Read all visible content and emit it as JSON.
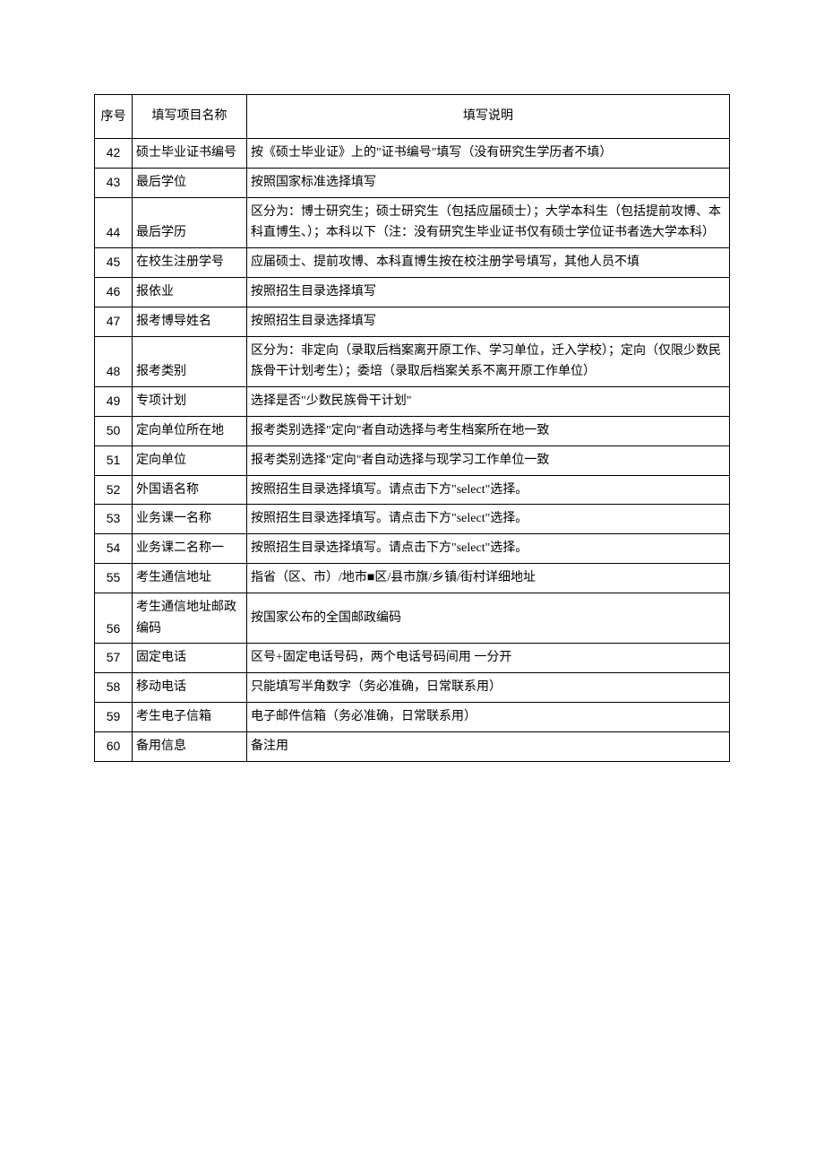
{
  "table": {
    "header": {
      "num": "序号",
      "name": "填写项目名称",
      "desc": "填写说明"
    },
    "rows": [
      {
        "num": "42",
        "name": "硕士毕业证书编号",
        "desc": "按《硕士毕业证》上的\"证书编号\"填写（没有研究生学历者不填）"
      },
      {
        "num": "43",
        "name": "最后学位",
        "desc": "按照国家标准选择填写"
      },
      {
        "num": "44",
        "name": "最后学历",
        "desc": "区分为：博士研究生；硕士研究生（包括应届硕士）；大学本科生（包括提前攻博、本科直博生、）；本科以下（注：没有研究生毕业证书仅有硕士学位证书者选大学本科）",
        "bottom": true
      },
      {
        "num": "45",
        "name": "在校生注册学号",
        "desc": "应届硕士、提前攻博、本科直博生按在校注册学号填写，其他人员不填"
      },
      {
        "num": "46",
        "name": "报依业",
        "desc": "按照招生目录选择填写"
      },
      {
        "num": "47",
        "name": "报考博导姓名",
        "desc": "按照招生目录选择填写"
      },
      {
        "num": "48",
        "name": "报考类别",
        "desc": "区分为：非定向（录取后档案离开原工作、学习单位，迁入学校）；定向（仅限少数民族骨干计划考生）；委培（录取后档案关系不离开原工作单位）",
        "bottom": true
      },
      {
        "num": "49",
        "name": "专项计划",
        "desc": "选择是否\"少数民族骨干计划\""
      },
      {
        "num": "50",
        "name": "定向单位所在地",
        "desc": "报考类别选择\"定向\"者自动选择与考生档案所在地一致"
      },
      {
        "num": "51",
        "name": "定向单位",
        "desc": "报考类别选择\"定向\"者自动选择与现学习工作单位一致"
      },
      {
        "num": "52",
        "name": "外国语名称",
        "desc": "按照招生目录选择填写。请点击下方\"select\"选择。"
      },
      {
        "num": "53",
        "name": "业务课一名称",
        "desc": "按照招生目录选择填写。请点击下方\"select\"选择。"
      },
      {
        "num": "54",
        "name": "业务课二名称一",
        "desc": "按照招生目录选择填写。请点击下方\"select\"选择。"
      },
      {
        "num": "55",
        "name": "考生通信地址",
        "desc": "指省（区、市）/地市■区/县市旗/乡镇/街村详细地址"
      },
      {
        "num": "56",
        "name": "考生通信地址邮政编码",
        "desc": "按国家公布的全国邮政编码",
        "bottom": true
      },
      {
        "num": "57",
        "name": "固定电话",
        "desc": "区号+固定电话号码，两个电话号码间用 一分开"
      },
      {
        "num": "58",
        "name": "移动电话",
        "desc": "只能填写半角数字（务必准确，日常联系用）"
      },
      {
        "num": "59",
        "name": "考生电子信箱",
        "desc": "电子邮件信箱（务必准确，日常联系用）"
      },
      {
        "num": "60",
        "name": "备用信息",
        "desc": "备注用"
      }
    ]
  }
}
